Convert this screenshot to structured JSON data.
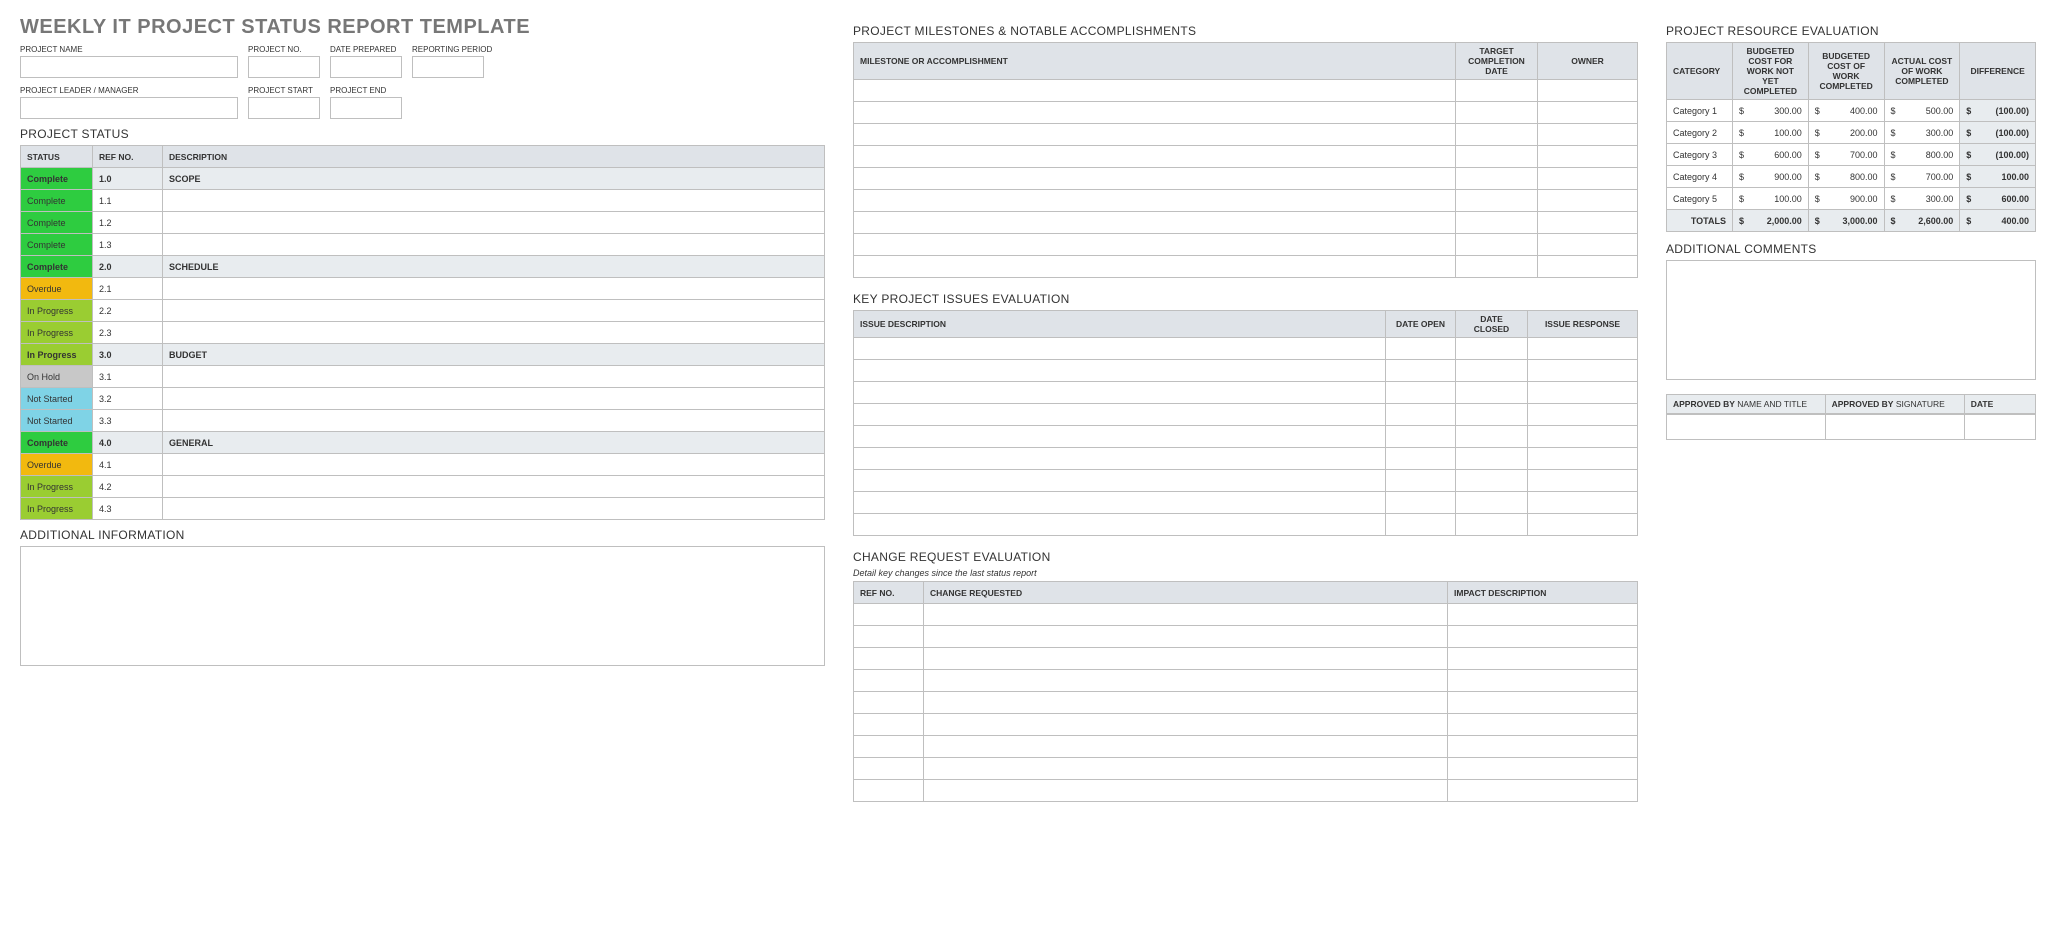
{
  "title": "WEEKLY IT PROJECT STATUS REPORT TEMPLATE",
  "meta": {
    "row1": {
      "project_name": "PROJECT NAME",
      "project_no": "PROJECT NO.",
      "date_prepared": "DATE PREPARED",
      "reporting_period": "REPORTING PERIOD"
    },
    "row2": {
      "project_leader": "PROJECT LEADER / MANAGER",
      "project_start": "PROJECT START",
      "project_end": "PROJECT END"
    }
  },
  "project_status": {
    "heading": "PROJECT STATUS",
    "headers": {
      "status": "STATUS",
      "ref": "REF NO.",
      "desc": "DESCRIPTION"
    },
    "rows": [
      {
        "status": "Complete",
        "ref": "1.0",
        "desc": "SCOPE",
        "section": true
      },
      {
        "status": "Complete",
        "ref": "1.1",
        "desc": ""
      },
      {
        "status": "Complete",
        "ref": "1.2",
        "desc": ""
      },
      {
        "status": "Complete",
        "ref": "1.3",
        "desc": ""
      },
      {
        "status": "Complete",
        "ref": "2.0",
        "desc": "SCHEDULE",
        "section": true
      },
      {
        "status": "Overdue",
        "ref": "2.1",
        "desc": ""
      },
      {
        "status": "In Progress",
        "ref": "2.2",
        "desc": ""
      },
      {
        "status": "In Progress",
        "ref": "2.3",
        "desc": ""
      },
      {
        "status": "In Progress",
        "ref": "3.0",
        "desc": "BUDGET",
        "section": true
      },
      {
        "status": "On Hold",
        "ref": "3.1",
        "desc": ""
      },
      {
        "status": "Not Started",
        "ref": "3.2",
        "desc": ""
      },
      {
        "status": "Not Started",
        "ref": "3.3",
        "desc": ""
      },
      {
        "status": "Complete",
        "ref": "4.0",
        "desc": "GENERAL",
        "section": true
      },
      {
        "status": "Overdue",
        "ref": "4.1",
        "desc": ""
      },
      {
        "status": "In Progress",
        "ref": "4.2",
        "desc": ""
      },
      {
        "status": "In Progress",
        "ref": "4.3",
        "desc": ""
      }
    ]
  },
  "additional_info_heading": "ADDITIONAL INFORMATION",
  "milestones": {
    "heading": "PROJECT MILESTONES & NOTABLE ACCOMPLISHMENTS",
    "headers": {
      "milestone": "MILESTONE OR ACCOMPLISHMENT",
      "target": "TARGET COMPLETION DATE",
      "owner": "OWNER"
    },
    "blank_rows": 9
  },
  "issues": {
    "heading": "KEY PROJECT ISSUES EVALUATION",
    "headers": {
      "desc": "ISSUE DESCRIPTION",
      "open": "DATE OPEN",
      "closed": "DATE CLOSED",
      "response": "ISSUE RESPONSE"
    },
    "blank_rows": 9
  },
  "change": {
    "heading": "CHANGE REQUEST EVALUATION",
    "subtext": "Detail key changes since the last status report",
    "headers": {
      "ref": "REF NO.",
      "req": "CHANGE REQUESTED",
      "impact": "IMPACT DESCRIPTION"
    },
    "blank_rows": 9
  },
  "resource": {
    "heading": "PROJECT RESOURCE EVALUATION",
    "headers": {
      "category": "CATEGORY",
      "bud_not": "BUDGETED COST FOR WORK NOT YET COMPLETED",
      "bud_done": "BUDGETED COST OF WORK COMPLETED",
      "actual": "ACTUAL COST OF WORK COMPLETED",
      "diff": "DIFFERENCE"
    },
    "rows": [
      {
        "cat": "Category 1",
        "a": "300.00",
        "b": "400.00",
        "c": "500.00",
        "d": "(100.00)"
      },
      {
        "cat": "Category 2",
        "a": "100.00",
        "b": "200.00",
        "c": "300.00",
        "d": "(100.00)"
      },
      {
        "cat": "Category 3",
        "a": "600.00",
        "b": "700.00",
        "c": "800.00",
        "d": "(100.00)"
      },
      {
        "cat": "Category 4",
        "a": "900.00",
        "b": "800.00",
        "c": "700.00",
        "d": "100.00"
      },
      {
        "cat": "Category 5",
        "a": "100.00",
        "b": "900.00",
        "c": "300.00",
        "d": "600.00"
      }
    ],
    "totals_label": "TOTALS",
    "totals": {
      "a": "2,000.00",
      "b": "3,000.00",
      "c": "2,600.00",
      "d": "400.00"
    },
    "currency": "$"
  },
  "comments_heading": "ADDITIONAL COMMENTS",
  "approval": {
    "by_name": "APPROVED BY",
    "by_name_sub": "NAME AND TITLE",
    "by_sig": "APPROVED BY",
    "by_sig_sub": "SIGNATURE",
    "date": "DATE"
  },
  "colors": {
    "header_bg": "#dfe3e8",
    "border": "#bfbfbf",
    "Complete": "#2ecc40",
    "Overdue": "#f2b90f",
    "In Progress": "#9acd32",
    "On Hold": "#c8c8c8",
    "Not Started": "#7fd3e6"
  }
}
